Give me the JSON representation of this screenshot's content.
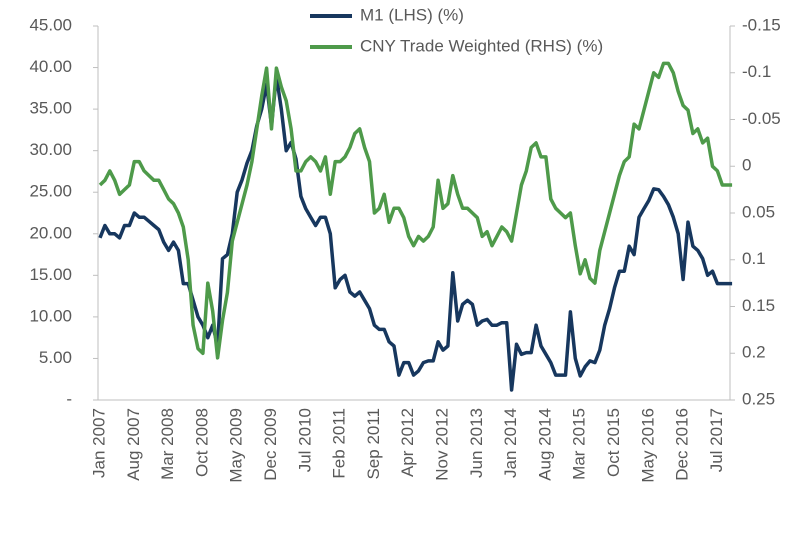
{
  "chart_data": {
    "type": "line",
    "categories": [
      "Jan 2007",
      null,
      null,
      null,
      null,
      null,
      null,
      "Aug 2007",
      null,
      null,
      null,
      null,
      null,
      null,
      "Mar 2008",
      null,
      null,
      null,
      null,
      null,
      null,
      "Oct 2008",
      null,
      null,
      null,
      null,
      null,
      null,
      "May 2009",
      null,
      null,
      null,
      null,
      null,
      null,
      "Dec 2009",
      null,
      null,
      null,
      null,
      null,
      null,
      "Jul 2010",
      null,
      null,
      null,
      null,
      null,
      null,
      "Feb 2011",
      null,
      null,
      null,
      null,
      null,
      null,
      "Sep 2011",
      null,
      null,
      null,
      null,
      null,
      null,
      "Apr 2012",
      null,
      null,
      null,
      null,
      null,
      null,
      "Nov 2012",
      null,
      null,
      null,
      null,
      null,
      null,
      "Jun 2013",
      null,
      null,
      null,
      null,
      null,
      null,
      "Jan 2014",
      null,
      null,
      null,
      null,
      null,
      null,
      "Aug 2014",
      null,
      null,
      null,
      null,
      null,
      null,
      "Mar 2015",
      null,
      null,
      null,
      null,
      null,
      null,
      "Oct 2015",
      null,
      null,
      null,
      null,
      null,
      null,
      "May 2016",
      null,
      null,
      null,
      null,
      null,
      null,
      "Dec 2016",
      null,
      null,
      null,
      null,
      null,
      null,
      "Jul 2017",
      null,
      null,
      null
    ],
    "series": [
      {
        "name": "M1 (LHS) (%)",
        "color": "#17375e",
        "values": [
          19.5,
          21,
          20,
          20,
          19.5,
          21,
          21,
          22.5,
          22,
          22,
          21.5,
          21,
          20.5,
          19,
          18,
          19,
          18,
          14,
          14,
          12,
          10,
          9,
          7.5,
          9,
          6.5,
          17,
          17.5,
          20,
          25,
          26.5,
          28.5,
          30,
          33,
          35,
          38,
          33,
          39,
          35,
          30,
          31,
          29,
          24.5,
          23,
          22,
          21,
          22,
          22,
          20,
          13.5,
          14.5,
          15,
          13,
          12.5,
          13,
          12,
          11,
          9,
          8.5,
          8.5,
          7,
          6.5,
          3,
          4.5,
          4.5,
          3,
          3.5,
          4.5,
          4.7,
          4.7,
          7,
          6,
          6.5,
          15.3,
          9.5,
          11.5,
          12,
          11.5,
          9,
          9.5,
          9.7,
          9,
          9,
          9.3,
          9.3,
          1.2,
          6.7,
          5.5,
          5.7,
          5.7,
          9,
          6.5,
          5.5,
          4.5,
          3,
          3,
          3,
          10.6,
          5,
          2.9,
          4,
          4.7,
          4.5,
          6,
          9,
          11,
          13.5,
          15.5,
          15.5,
          18.5,
          17.5,
          22,
          23,
          24,
          25.4,
          25.3,
          24.5,
          23.5,
          22,
          20,
          14.5,
          21.4,
          18.5,
          18,
          17,
          15,
          15.5,
          14,
          14,
          14,
          14
        ]
      },
      {
        "name": "CNY Trade Weighted (RHS) (%)",
        "color": "#4e9a4a",
        "axis": "y2",
        "values": [
          0.02,
          0.015,
          0.005,
          0.015,
          0.03,
          0.025,
          0.02,
          -0.005,
          -0.005,
          0.005,
          0.01,
          0.015,
          0.015,
          0.025,
          0.035,
          0.04,
          0.05,
          0.065,
          0.1,
          0.17,
          0.195,
          0.2,
          0.125,
          0.155,
          0.205,
          0.165,
          0.135,
          0.08,
          0.06,
          0.04,
          0.02,
          -0.005,
          -0.04,
          -0.075,
          -0.105,
          -0.04,
          -0.105,
          -0.085,
          -0.07,
          -0.04,
          0.005,
          0.005,
          -0.005,
          -0.01,
          -0.005,
          0.005,
          -0.01,
          0.03,
          -0.005,
          -0.005,
          -0.01,
          -0.02,
          -0.035,
          -0.04,
          -0.02,
          -0.005,
          0.05,
          0.045,
          0.03,
          0.06,
          0.045,
          0.045,
          0.055,
          0.075,
          0.085,
          0.075,
          0.08,
          0.075,
          0.065,
          0.015,
          0.045,
          0.04,
          0.01,
          0.03,
          0.045,
          0.045,
          0.05,
          0.055,
          0.075,
          0.07,
          0.085,
          0.075,
          0.065,
          0.07,
          0.08,
          0.05,
          0.02,
          0.005,
          -0.02,
          -0.025,
          -0.01,
          -0.01,
          0.035,
          0.045,
          0.05,
          0.055,
          0.05,
          0.085,
          0.115,
          0.1,
          0.12,
          0.125,
          0.09,
          0.07,
          0.05,
          0.03,
          0.01,
          -0.005,
          -0.01,
          -0.045,
          -0.04,
          -0.06,
          -0.08,
          -0.1,
          -0.095,
          -0.11,
          -0.11,
          -0.1,
          -0.08,
          -0.065,
          -0.06,
          -0.035,
          -0.04,
          -0.025,
          -0.03,
          0,
          0.005,
          0.02,
          0.02,
          0.02
        ]
      }
    ],
    "ylim": [
      0,
      45
    ],
    "yticks": [
      {
        "value": 0,
        "label": "-"
      },
      {
        "value": 5,
        "label": "5.00"
      },
      {
        "value": 10,
        "label": "10.00"
      },
      {
        "value": 15,
        "label": "15.00"
      },
      {
        "value": 20,
        "label": "20.00"
      },
      {
        "value": 25,
        "label": "25.00"
      },
      {
        "value": 30,
        "label": "30.00"
      },
      {
        "value": 35,
        "label": "35.00"
      },
      {
        "value": 40,
        "label": "40.00"
      },
      {
        "value": 45,
        "label": "45.00"
      }
    ],
    "y2lim": [
      0.25,
      -0.15
    ],
    "y2ticks": [
      -0.15,
      -0.1,
      -0.05,
      0,
      0.05,
      0.1,
      0.15,
      0.2,
      0.25
    ],
    "grid": false
  }
}
